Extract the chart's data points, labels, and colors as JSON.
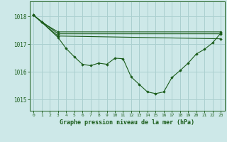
{
  "background_color": "#cde8e8",
  "grid_color": "#aacfcf",
  "line_color": "#1a5c1a",
  "xlabel": "Graphe pression niveau de la mer (hPa)",
  "xlim": [
    -0.5,
    23.5
  ],
  "ylim": [
    1014.6,
    1018.55
  ],
  "yticks": [
    1015,
    1016,
    1017,
    1018
  ],
  "xticks": [
    0,
    1,
    2,
    3,
    4,
    5,
    6,
    7,
    8,
    9,
    10,
    11,
    12,
    13,
    14,
    15,
    16,
    17,
    18,
    19,
    20,
    21,
    22,
    23
  ],
  "series": [
    {
      "x": [
        0,
        1,
        3,
        23
      ],
      "y": [
        1018.05,
        1017.8,
        1017.45,
        1017.45
      ]
    },
    {
      "x": [
        0,
        3,
        23
      ],
      "y": [
        1018.05,
        1017.3,
        1017.2
      ]
    },
    {
      "x": [
        0,
        3,
        23
      ],
      "y": [
        1018.05,
        1017.38,
        1017.38
      ]
    },
    {
      "x": [
        0,
        1,
        3,
        4,
        5,
        6,
        7,
        8,
        9,
        10,
        11,
        12,
        13,
        14,
        15,
        16,
        17,
        18,
        19,
        20,
        21,
        22,
        23
      ],
      "y": [
        1018.05,
        1017.8,
        1017.25,
        1016.85,
        1016.55,
        1016.28,
        1016.23,
        1016.32,
        1016.28,
        1016.5,
        1016.48,
        1015.82,
        1015.55,
        1015.28,
        1015.22,
        1015.28,
        1015.8,
        1016.05,
        1016.32,
        1016.65,
        1016.82,
        1017.05,
        1017.4
      ]
    }
  ]
}
